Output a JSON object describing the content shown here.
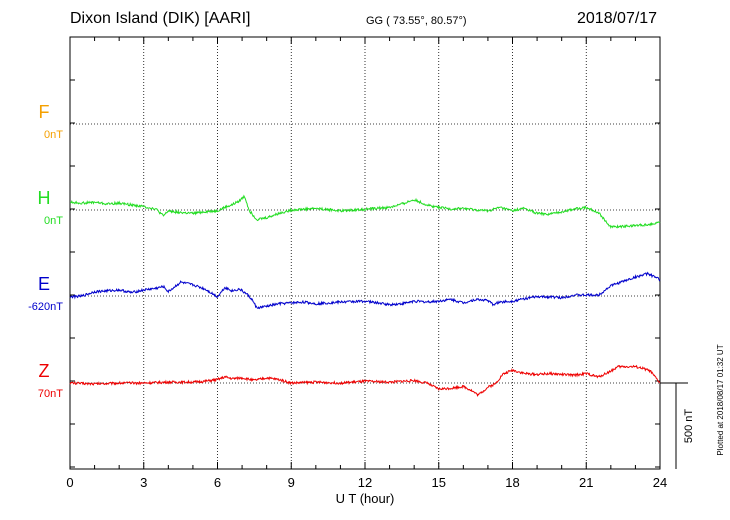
{
  "header": {
    "station": "Dixon Island (DIK)  [AARI]",
    "coords": "GG ( 73.55°,  80.57°)",
    "date": "2018/07/17"
  },
  "footer_note": "Plotted at 2018/08/17 01:32 UT",
  "scale_label": "500 nT",
  "chart_data": {
    "type": "line",
    "xlabel": "U T (hour)",
    "xlim": [
      0,
      24
    ],
    "xticks": [
      "0",
      "3",
      "6",
      "9",
      "12",
      "15",
      "18",
      "21",
      "24"
    ],
    "grid": true,
    "scale_bar_nT": 500,
    "series": [
      {
        "name": "F",
        "offset_label": "0nT",
        "color": "#f5a000",
        "x": [],
        "y": []
      },
      {
        "name": "H",
        "offset_label": "0nT",
        "color": "#22dd22",
        "x": [
          0,
          0.5,
          1,
          1.5,
          2,
          2.5,
          3,
          3.5,
          3.8,
          4,
          4.5,
          5,
          5.5,
          6,
          6.3,
          6.6,
          6.9,
          7.1,
          7.3,
          7.6,
          8,
          8.5,
          9,
          9.5,
          10,
          11,
          12,
          13,
          13.5,
          14,
          14.5,
          15,
          15.5,
          16,
          16.5,
          17,
          17.5,
          18,
          18.5,
          19,
          19.5,
          20,
          20.5,
          21,
          21.5,
          22,
          22.5,
          23,
          23.5,
          24
        ],
        "y": [
          45,
          40,
          45,
          35,
          40,
          30,
          20,
          5,
          -35,
          -5,
          -15,
          -20,
          -10,
          -5,
          15,
          30,
          55,
          80,
          -5,
          -55,
          -45,
          -20,
          0,
          5,
          10,
          -5,
          5,
          15,
          35,
          60,
          30,
          15,
          5,
          10,
          0,
          -5,
          15,
          -5,
          10,
          -20,
          -25,
          -10,
          5,
          15,
          -15,
          -100,
          -95,
          -90,
          -85,
          -70
        ]
      },
      {
        "name": "E",
        "offset_label": "-620nT",
        "color": "#0000cc",
        "x": [
          0,
          0.5,
          1,
          1.5,
          2,
          2.5,
          3,
          3.5,
          3.8,
          4,
          4.5,
          5,
          5.5,
          6,
          6.3,
          6.6,
          6.9,
          7.2,
          7.4,
          7.6,
          8,
          8.5,
          9,
          9.5,
          10,
          11,
          12,
          13,
          13.5,
          14,
          14.5,
          15,
          15.5,
          16,
          16.5,
          17,
          17.2,
          17.5,
          18,
          18.5,
          19,
          19.5,
          20,
          20.5,
          21,
          21.5,
          22,
          22.5,
          23,
          23.5,
          24
        ],
        "y": [
          -5,
          0,
          25,
          30,
          35,
          20,
          35,
          45,
          55,
          25,
          80,
          65,
          40,
          -5,
          50,
          30,
          40,
          10,
          -20,
          -70,
          -60,
          -45,
          -40,
          -35,
          -45,
          -35,
          -30,
          -50,
          -45,
          -30,
          -35,
          -30,
          -20,
          -40,
          -20,
          -25,
          -50,
          -35,
          -30,
          -15,
          -5,
          -5,
          -10,
          5,
          5,
          5,
          60,
          85,
          110,
          130,
          95
        ]
      },
      {
        "name": "Z",
        "offset_label": "70nT",
        "color": "#ee0000",
        "x": [
          0,
          1,
          2,
          3,
          4,
          5,
          5.5,
          6,
          6.3,
          6.6,
          7,
          7.5,
          8,
          8.5,
          9,
          10,
          11,
          12,
          13,
          14,
          14.5,
          15,
          15.5,
          16,
          16.3,
          16.6,
          17,
          17.3,
          17.6,
          18,
          18.5,
          19,
          19.5,
          20,
          20.5,
          21,
          21.5,
          22,
          22.3,
          22.6,
          23,
          23.3,
          23.6,
          24
        ],
        "y": [
          0,
          -5,
          0,
          0,
          5,
          5,
          10,
          20,
          35,
          25,
          30,
          15,
          30,
          20,
          0,
          5,
          0,
          10,
          5,
          15,
          0,
          -35,
          -30,
          -20,
          -40,
          -70,
          -25,
          -5,
          50,
          75,
          55,
          50,
          55,
          50,
          45,
          55,
          35,
          70,
          95,
          95,
          95,
          85,
          70,
          0
        ]
      }
    ]
  }
}
